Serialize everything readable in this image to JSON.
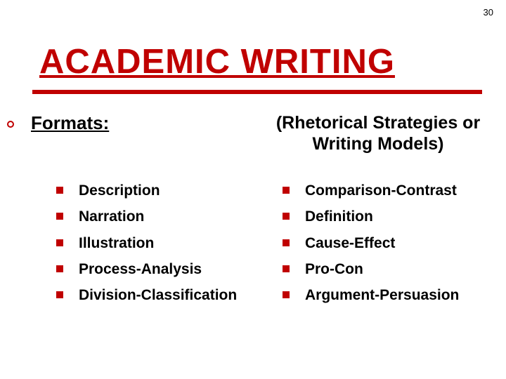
{
  "page_number": "30",
  "title": "ACADEMIC WRITING",
  "section_heading": "Formats:",
  "subtitle": "(Rhetorical Strategies or Writing Models)",
  "colors": {
    "accent": "#c00000",
    "text": "#000000",
    "background": "#ffffff"
  },
  "typography": {
    "title_fontsize": 49,
    "heading_fontsize": 26,
    "subtitle_fontsize": 25,
    "item_fontsize": 21,
    "font_family": "Verdana"
  },
  "left_items": [
    "Description",
    "Narration",
    "Illustration",
    "Process-Analysis",
    "Division-Classification"
  ],
  "right_items": [
    "Comparison-Contrast",
    "Definition",
    "Cause-Effect",
    "Pro-Con",
    "Argument-Persuasion"
  ]
}
